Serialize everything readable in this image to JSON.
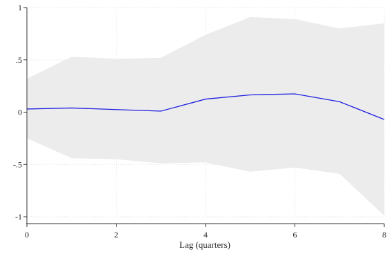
{
  "chart_data": {
    "type": "line",
    "title": "",
    "xlabel": "Lag (quarters)",
    "ylabel": "",
    "xlim": [
      0,
      8
    ],
    "ylim": [
      -1,
      1
    ],
    "grid": true,
    "x_ticks": [
      {
        "value": 0,
        "label": "0"
      },
      {
        "value": 2,
        "label": "2"
      },
      {
        "value": 4,
        "label": "4"
      },
      {
        "value": 6,
        "label": "6"
      },
      {
        "value": 8,
        "label": "8"
      }
    ],
    "y_ticks": [
      {
        "value": 1,
        "label": "1"
      },
      {
        "value": 0.5,
        "label": ".5"
      },
      {
        "value": 0,
        "label": "0"
      },
      {
        "value": -0.5,
        "label": "-.5"
      },
      {
        "value": -1,
        "label": "-1"
      }
    ],
    "x": [
      0,
      1,
      2,
      3,
      4,
      5,
      6,
      7,
      8
    ],
    "series": [
      {
        "values": [
          0.03,
          0.04,
          0.025,
          0.01,
          0.125,
          0.165,
          0.175,
          0.1,
          -0.07
        ],
        "color": "#1f1fe0"
      }
    ],
    "band": {
      "upper": [
        0.32,
        0.53,
        0.51,
        0.52,
        0.74,
        0.91,
        0.89,
        0.8,
        0.85
      ],
      "lower": [
        -0.25,
        -0.44,
        -0.45,
        -0.49,
        -0.48,
        -0.57,
        -0.53,
        -0.59,
        -0.99
      ],
      "color": "#ececec"
    }
  },
  "colors": {
    "line": "#1f1fe0",
    "band": "#ececec",
    "grid": "#e2e2e2",
    "axis": "#333333"
  }
}
